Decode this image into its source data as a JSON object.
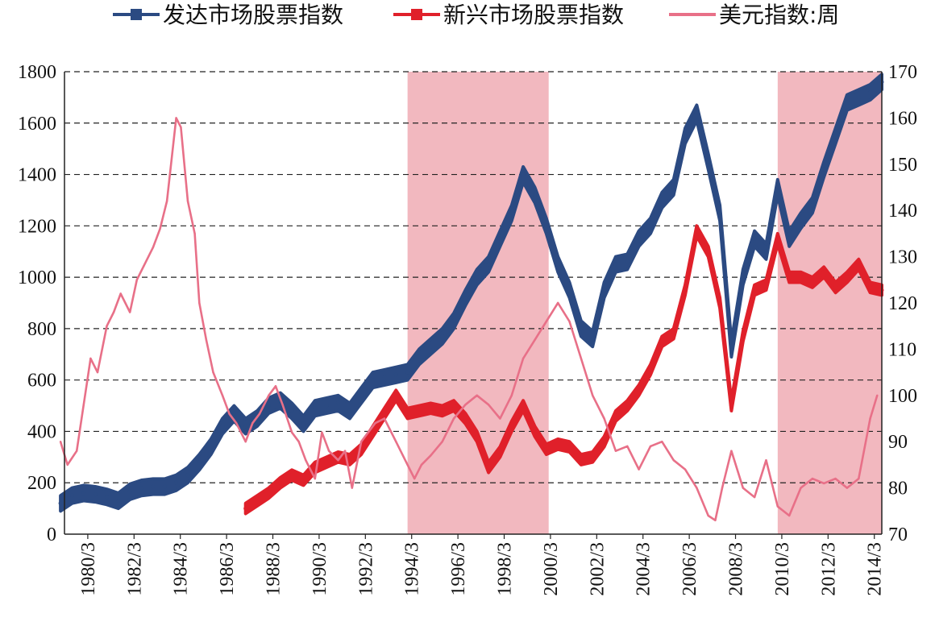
{
  "chart_data": {
    "type": "line",
    "legend_position": "top",
    "grid": true,
    "x_ticks": [
      "1980/3",
      "1982/3",
      "1984/3",
      "1986/3",
      "1988/3",
      "1990/3",
      "1992/3",
      "1994/3",
      "1996/3",
      "1998/3",
      "2000/3",
      "2002/3",
      "2004/3",
      "2006/3",
      "2008/3",
      "2010/3",
      "2012/3",
      "2014/3"
    ],
    "x_range": [
      1980.17,
      2015.5
    ],
    "y_left": {
      "range": [
        0,
        1800
      ],
      "ticks": [
        0,
        200,
        400,
        600,
        800,
        1000,
        1200,
        1400,
        1600,
        1800
      ]
    },
    "y_right": {
      "range": [
        70,
        170
      ],
      "ticks": [
        70,
        80,
        90,
        100,
        110,
        120,
        130,
        140,
        150,
        160,
        170
      ]
    },
    "shaded_periods": [
      {
        "from": 1995.0,
        "to": 2001.1,
        "color": "#f2b8bf"
      },
      {
        "from": 2011.0,
        "to": 2015.5,
        "color": "#f2b8bf"
      }
    ],
    "series": [
      {
        "name": "发达市场股票指数",
        "axis": "left",
        "color": "#2b4a82",
        "band": 30,
        "points": [
          [
            1980.0,
            120
          ],
          [
            1980.5,
            150
          ],
          [
            1981.0,
            160
          ],
          [
            1981.5,
            155
          ],
          [
            1982.0,
            145
          ],
          [
            1982.5,
            130
          ],
          [
            1983.0,
            165
          ],
          [
            1983.5,
            180
          ],
          [
            1984.0,
            185
          ],
          [
            1984.5,
            185
          ],
          [
            1985.0,
            200
          ],
          [
            1985.5,
            230
          ],
          [
            1986.0,
            280
          ],
          [
            1986.5,
            340
          ],
          [
            1987.0,
            420
          ],
          [
            1987.5,
            470
          ],
          [
            1988.0,
            420
          ],
          [
            1988.5,
            450
          ],
          [
            1989.0,
            500
          ],
          [
            1989.5,
            520
          ],
          [
            1990.0,
            480
          ],
          [
            1990.5,
            430
          ],
          [
            1991.0,
            490
          ],
          [
            1991.5,
            500
          ],
          [
            1992.0,
            510
          ],
          [
            1992.5,
            480
          ],
          [
            1993.0,
            540
          ],
          [
            1993.5,
            600
          ],
          [
            1994.0,
            610
          ],
          [
            1994.5,
            620
          ],
          [
            1995.0,
            630
          ],
          [
            1995.5,
            690
          ],
          [
            1996.0,
            730
          ],
          [
            1996.5,
            770
          ],
          [
            1997.0,
            830
          ],
          [
            1997.5,
            920
          ],
          [
            1998.0,
            1000
          ],
          [
            1998.5,
            1050
          ],
          [
            1999.0,
            1150
          ],
          [
            1999.5,
            1250
          ],
          [
            2000.0,
            1400
          ],
          [
            2000.5,
            1320
          ],
          [
            2001.0,
            1200
          ],
          [
            2001.5,
            1050
          ],
          [
            2002.0,
            950
          ],
          [
            2002.5,
            800
          ],
          [
            2003.0,
            760
          ],
          [
            2003.5,
            950
          ],
          [
            2004.0,
            1050
          ],
          [
            2004.5,
            1060
          ],
          [
            2005.0,
            1150
          ],
          [
            2005.5,
            1200
          ],
          [
            2006.0,
            1300
          ],
          [
            2006.5,
            1350
          ],
          [
            2007.0,
            1550
          ],
          [
            2007.5,
            1640
          ],
          [
            2008.0,
            1450
          ],
          [
            2008.5,
            1250
          ],
          [
            2009.0,
            720
          ],
          [
            2009.5,
            1000
          ],
          [
            2010.0,
            1150
          ],
          [
            2010.5,
            1100
          ],
          [
            2011.0,
            1350
          ],
          [
            2011.5,
            1150
          ],
          [
            2012.0,
            1220
          ],
          [
            2012.5,
            1280
          ],
          [
            2013.0,
            1420
          ],
          [
            2013.5,
            1550
          ],
          [
            2014.0,
            1680
          ],
          [
            2014.5,
            1700
          ],
          [
            2015.0,
            1720
          ],
          [
            2015.5,
            1760
          ]
        ]
      },
      {
        "name": "新兴市场股票指数",
        "axis": "left",
        "color": "#e0202a",
        "band": 20,
        "points": [
          [
            1988.0,
            100
          ],
          [
            1988.5,
            130
          ],
          [
            1989.0,
            160
          ],
          [
            1989.5,
            200
          ],
          [
            1990.0,
            230
          ],
          [
            1990.5,
            210
          ],
          [
            1991.0,
            260
          ],
          [
            1991.5,
            280
          ],
          [
            1992.0,
            300
          ],
          [
            1992.5,
            290
          ],
          [
            1993.0,
            330
          ],
          [
            1993.5,
            400
          ],
          [
            1994.0,
            470
          ],
          [
            1994.5,
            540
          ],
          [
            1995.0,
            470
          ],
          [
            1995.5,
            480
          ],
          [
            1996.0,
            490
          ],
          [
            1996.5,
            480
          ],
          [
            1997.0,
            500
          ],
          [
            1997.5,
            450
          ],
          [
            1998.0,
            380
          ],
          [
            1998.5,
            260
          ],
          [
            1999.0,
            320
          ],
          [
            1999.5,
            420
          ],
          [
            2000.0,
            500
          ],
          [
            2000.5,
            400
          ],
          [
            2001.0,
            330
          ],
          [
            2001.5,
            350
          ],
          [
            2002.0,
            340
          ],
          [
            2002.5,
            290
          ],
          [
            2003.0,
            300
          ],
          [
            2003.5,
            360
          ],
          [
            2004.0,
            460
          ],
          [
            2004.5,
            500
          ],
          [
            2005.0,
            560
          ],
          [
            2005.5,
            640
          ],
          [
            2006.0,
            750
          ],
          [
            2006.5,
            780
          ],
          [
            2007.0,
            950
          ],
          [
            2007.5,
            1180
          ],
          [
            2008.0,
            1100
          ],
          [
            2008.5,
            900
          ],
          [
            2009.0,
            500
          ],
          [
            2009.5,
            770
          ],
          [
            2010.0,
            950
          ],
          [
            2010.5,
            970
          ],
          [
            2011.0,
            1150
          ],
          [
            2011.5,
            1000
          ],
          [
            2012.0,
            1000
          ],
          [
            2012.5,
            980
          ],
          [
            2013.0,
            1020
          ],
          [
            2013.5,
            960
          ],
          [
            2014.0,
            1000
          ],
          [
            2014.5,
            1050
          ],
          [
            2015.0,
            960
          ],
          [
            2015.5,
            950
          ]
        ]
      },
      {
        "name": "美元指数:周",
        "axis": "right",
        "color": "#e87088",
        "band": 0,
        "points": [
          [
            1980.0,
            90
          ],
          [
            1980.3,
            85
          ],
          [
            1980.7,
            88
          ],
          [
            1981.0,
            98
          ],
          [
            1981.3,
            108
          ],
          [
            1981.6,
            105
          ],
          [
            1982.0,
            115
          ],
          [
            1982.3,
            118
          ],
          [
            1982.6,
            122
          ],
          [
            1983.0,
            118
          ],
          [
            1983.3,
            125
          ],
          [
            1983.6,
            128
          ],
          [
            1984.0,
            132
          ],
          [
            1984.3,
            136
          ],
          [
            1984.6,
            142
          ],
          [
            1985.0,
            160
          ],
          [
            1985.2,
            158
          ],
          [
            1985.5,
            142
          ],
          [
            1985.8,
            135
          ],
          [
            1986.0,
            120
          ],
          [
            1986.3,
            112
          ],
          [
            1986.6,
            105
          ],
          [
            1987.0,
            100
          ],
          [
            1987.3,
            96
          ],
          [
            1987.6,
            94
          ],
          [
            1988.0,
            90
          ],
          [
            1988.3,
            94
          ],
          [
            1988.6,
            96
          ],
          [
            1989.0,
            100
          ],
          [
            1989.3,
            102
          ],
          [
            1989.6,
            98
          ],
          [
            1990.0,
            92
          ],
          [
            1990.3,
            90
          ],
          [
            1990.6,
            86
          ],
          [
            1991.0,
            82
          ],
          [
            1991.3,
            92
          ],
          [
            1991.6,
            88
          ],
          [
            1992.0,
            86
          ],
          [
            1992.3,
            88
          ],
          [
            1992.6,
            80
          ],
          [
            1993.0,
            90
          ],
          [
            1993.3,
            92
          ],
          [
            1993.6,
            94
          ],
          [
            1994.0,
            95
          ],
          [
            1994.5,
            90
          ],
          [
            1995.0,
            85
          ],
          [
            1995.3,
            82
          ],
          [
            1995.6,
            85
          ],
          [
            1996.0,
            87
          ],
          [
            1996.5,
            90
          ],
          [
            1997.0,
            95
          ],
          [
            1997.5,
            98
          ],
          [
            1998.0,
            100
          ],
          [
            1998.5,
            98
          ],
          [
            1999.0,
            95
          ],
          [
            1999.5,
            100
          ],
          [
            2000.0,
            108
          ],
          [
            2000.5,
            112
          ],
          [
            2001.0,
            116
          ],
          [
            2001.5,
            120
          ],
          [
            2002.0,
            116
          ],
          [
            2002.5,
            108
          ],
          [
            2003.0,
            100
          ],
          [
            2003.5,
            95
          ],
          [
            2004.0,
            88
          ],
          [
            2004.5,
            89
          ],
          [
            2005.0,
            84
          ],
          [
            2005.5,
            89
          ],
          [
            2006.0,
            90
          ],
          [
            2006.5,
            86
          ],
          [
            2007.0,
            84
          ],
          [
            2007.5,
            80
          ],
          [
            2008.0,
            74
          ],
          [
            2008.3,
            73
          ],
          [
            2008.6,
            80
          ],
          [
            2009.0,
            88
          ],
          [
            2009.5,
            80
          ],
          [
            2010.0,
            78
          ],
          [
            2010.5,
            86
          ],
          [
            2011.0,
            76
          ],
          [
            2011.5,
            74
          ],
          [
            2012.0,
            80
          ],
          [
            2012.5,
            82
          ],
          [
            2013.0,
            81
          ],
          [
            2013.5,
            82
          ],
          [
            2014.0,
            80
          ],
          [
            2014.5,
            82
          ],
          [
            2015.0,
            95
          ],
          [
            2015.3,
            100
          ]
        ]
      }
    ]
  }
}
